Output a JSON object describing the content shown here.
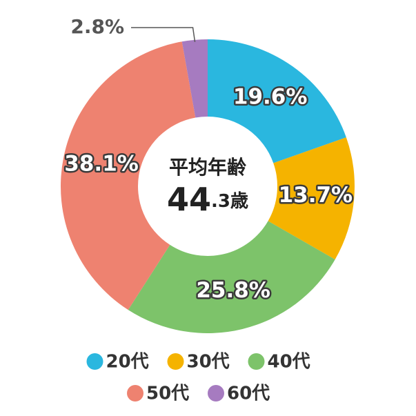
{
  "chart_data": {
    "type": "donut",
    "center_title": "平均年齢",
    "center_value_main": "44",
    "center_value_sub": ".3歳",
    "categories": [
      "20代",
      "30代",
      "40代",
      "50代",
      "60代"
    ],
    "values": [
      19.6,
      13.7,
      25.8,
      38.1,
      2.8
    ],
    "value_labels": [
      "19.6%",
      "13.7%",
      "25.8%",
      "38.1%",
      "2.8%"
    ],
    "colors": [
      "#2ab7df",
      "#f5b300",
      "#7dc36a",
      "#ee8270",
      "#a67bc0"
    ],
    "legend": "bottom"
  }
}
